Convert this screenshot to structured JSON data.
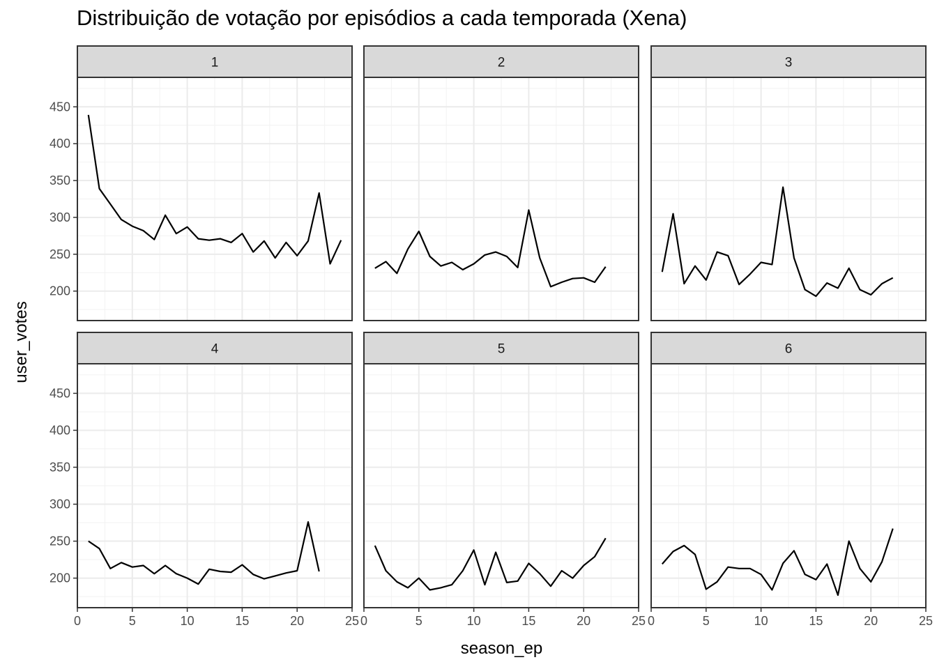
{
  "chart_data": {
    "type": "line",
    "title": "Distribuição de votação por episódios a cada temporada (Xena)",
    "xlabel": "season_ep",
    "ylabel": "user_votes",
    "xlim": [
      0,
      25
    ],
    "ylim": [
      160,
      490
    ],
    "x_ticks": [
      0,
      5,
      10,
      15,
      20,
      25
    ],
    "y_ticks": [
      200,
      250,
      300,
      350,
      400,
      450
    ],
    "grid": true,
    "facet_by": "season",
    "series": [
      {
        "name": "1",
        "x": [
          1,
          2,
          3,
          4,
          5,
          6,
          7,
          8,
          9,
          10,
          11,
          12,
          13,
          14,
          15,
          16,
          17,
          18,
          19,
          20,
          21,
          22,
          23,
          24
        ],
        "values": [
          439,
          339,
          318,
          297,
          288,
          282,
          270,
          303,
          278,
          287,
          271,
          269,
          271,
          266,
          278,
          253,
          268,
          245,
          266,
          248,
          268,
          333,
          237,
          269
        ]
      },
      {
        "name": "2",
        "x": [
          1,
          2,
          3,
          4,
          5,
          6,
          7,
          8,
          9,
          10,
          11,
          12,
          13,
          14,
          15,
          16,
          17,
          18,
          19,
          20,
          21,
          22
        ],
        "values": [
          231,
          240,
          224,
          257,
          281,
          247,
          234,
          239,
          229,
          237,
          249,
          253,
          247,
          232,
          310,
          245,
          206,
          212,
          217,
          218,
          212,
          233
        ]
      },
      {
        "name": "3",
        "x": [
          1,
          2,
          3,
          4,
          5,
          6,
          7,
          8,
          9,
          10,
          11,
          12,
          13,
          14,
          15,
          16,
          17,
          18,
          19,
          20,
          21,
          22
        ],
        "values": [
          226,
          305,
          210,
          234,
          215,
          253,
          248,
          209,
          223,
          239,
          236,
          341,
          245,
          202,
          193,
          211,
          204,
          231,
          202,
          195,
          210,
          218
        ]
      },
      {
        "name": "4",
        "x": [
          1,
          2,
          3,
          4,
          5,
          6,
          7,
          8,
          9,
          10,
          11,
          12,
          13,
          14,
          15,
          16,
          17,
          18,
          19,
          20,
          21,
          22
        ],
        "values": [
          250,
          240,
          213,
          221,
          215,
          217,
          206,
          217,
          206,
          200,
          192,
          212,
          209,
          208,
          218,
          205,
          199,
          203,
          207,
          210,
          276,
          209
        ]
      },
      {
        "name": "5",
        "x": [
          1,
          2,
          3,
          4,
          5,
          6,
          7,
          8,
          9,
          10,
          11,
          12,
          13,
          14,
          15,
          16,
          17,
          18,
          19,
          20,
          21,
          22
        ],
        "values": [
          244,
          210,
          195,
          187,
          200,
          184,
          187,
          191,
          210,
          238,
          191,
          235,
          194,
          196,
          220,
          206,
          189,
          210,
          200,
          217,
          229,
          254
        ]
      },
      {
        "name": "6",
        "x": [
          1,
          2,
          3,
          4,
          5,
          6,
          7,
          8,
          9,
          10,
          11,
          12,
          13,
          14,
          15,
          16,
          17,
          18,
          19,
          20,
          21,
          22
        ],
        "values": [
          219,
          236,
          244,
          232,
          185,
          195,
          215,
          213,
          213,
          205,
          184,
          220,
          237,
          205,
          198,
          219,
          177,
          250,
          213,
          195,
          222,
          267
        ]
      }
    ]
  }
}
